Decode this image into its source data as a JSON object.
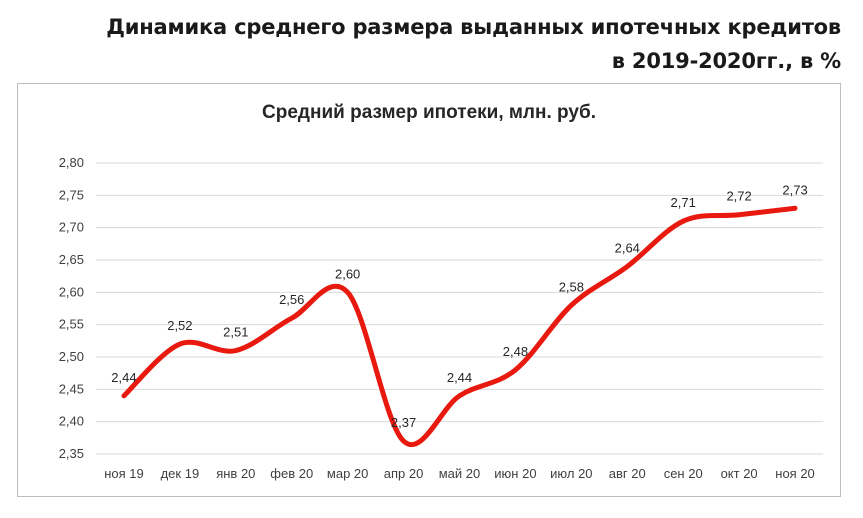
{
  "heading": {
    "line1": "Динамика среднего размера выданных ипотечных кредитов",
    "line2": "в 2019-2020гг., в %"
  },
  "colors": {
    "line": "#e8190f",
    "grid": "#d9d9d9",
    "heading": "#1a1a1a"
  },
  "chart_data": {
    "type": "line",
    "title": "Средний размер ипотеки,  млн. руб.",
    "categories": [
      "ноя 19",
      "дек 19",
      "янв 20",
      "фев 20",
      "мар 20",
      "апр 20",
      "май 20",
      "июн 20",
      "июл 20",
      "авг 20",
      "сен 20",
      "окт 20",
      "ноя 20"
    ],
    "series": [
      {
        "values": [
          2.44,
          2.52,
          2.51,
          2.56,
          2.6,
          2.37,
          2.44,
          2.48,
          2.58,
          2.64,
          2.71,
          2.72,
          2.73
        ]
      }
    ],
    "data_labels": [
      "2,44",
      "2,52",
      "2,51",
      "2,56",
      "2,60",
      "2,37",
      "2,44",
      "2,48",
      "2,58",
      "2,64",
      "2,71",
      "2,72",
      "2,73"
    ],
    "y_ticks": [
      "2,35",
      "2,40",
      "2,45",
      "2,50",
      "2,55",
      "2,60",
      "2,65",
      "2,70",
      "2,75",
      "2,80"
    ],
    "ylim": [
      2.35,
      2.8
    ],
    "grid": true,
    "legend": "none",
    "smooth": true
  }
}
